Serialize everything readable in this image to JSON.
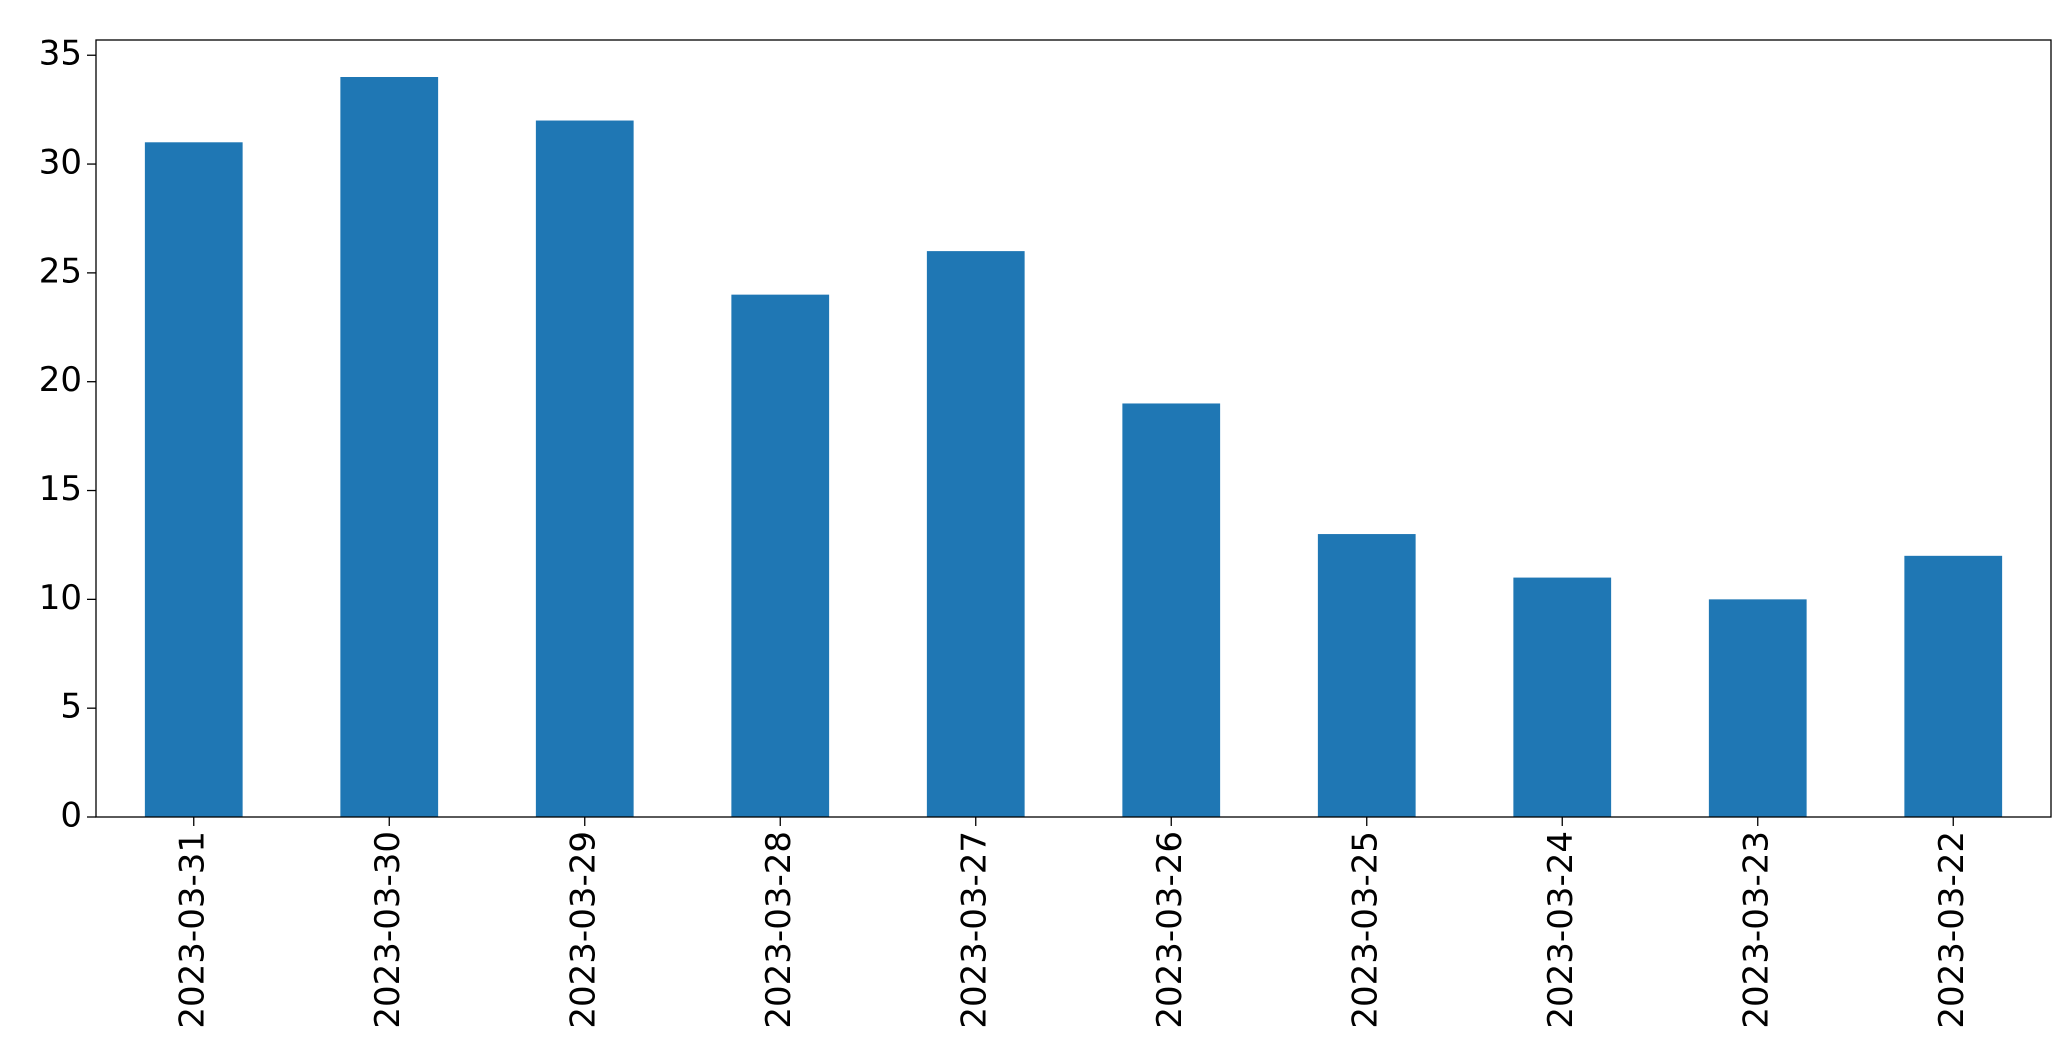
{
  "chart_data": {
    "type": "bar",
    "categories": [
      "2023-03-31",
      "2023-03-30",
      "2023-03-29",
      "2023-03-28",
      "2023-03-27",
      "2023-03-26",
      "2023-03-25",
      "2023-03-24",
      "2023-03-23",
      "2023-03-22"
    ],
    "values": [
      31,
      34,
      32,
      24,
      26,
      19,
      13,
      11,
      10,
      12
    ],
    "color": "#1f77b4",
    "ylim": [
      0,
      35.7
    ],
    "yticks": [
      0,
      5,
      10,
      15,
      20,
      25,
      30,
      35
    ],
    "grid": false
  }
}
